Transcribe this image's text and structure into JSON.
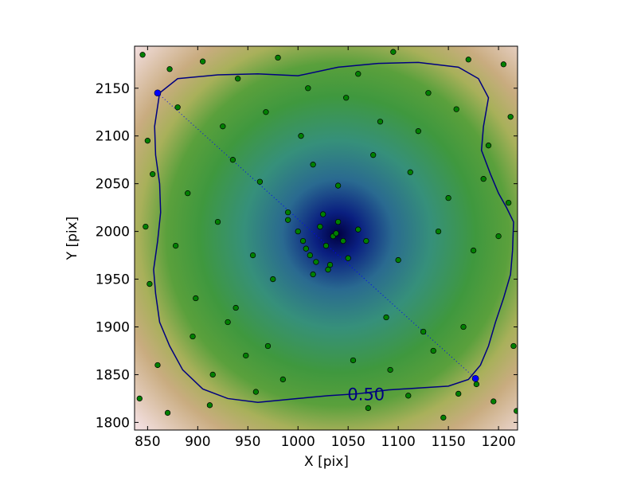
{
  "chart_data": {
    "type": "scatter",
    "x_label": "X [pix]",
    "y_label": "Y [pix]",
    "xlim": [
      837,
      1219
    ],
    "ylim": [
      1792,
      2194
    ],
    "xticks": [
      850,
      900,
      950,
      1000,
      1050,
      1100,
      1150,
      1200
    ],
    "yticks": [
      1800,
      1850,
      1900,
      1950,
      2000,
      2050,
      2100,
      2150
    ],
    "series": [
      {
        "color": "#008000",
        "x": [
          845,
          872,
          905,
          940,
          980,
          1010,
          1060,
          1095,
          1130,
          1170,
          1205,
          1212,
          850,
          880,
          925,
          968,
          1003,
          1048,
          1082,
          1120,
          1158,
          1190,
          855,
          890,
          935,
          962,
          1015,
          1040,
          1075,
          1112,
          1150,
          1185,
          1210,
          848,
          878,
          920,
          955,
          990,
          1030,
          1068,
          1100,
          1140,
          1175,
          1200,
          852,
          898,
          938,
          975,
          1005,
          1022,
          1035,
          1012,
          1028,
          1040,
          1018,
          1000,
          1045,
          1025,
          1008,
          1032,
          1050,
          990,
          1060,
          1015,
          1038,
          895,
          930,
          970,
          1088,
          1125,
          1165,
          860,
          915,
          948,
          985,
          1055,
          1092,
          1135,
          1178,
          1215,
          842,
          870,
          912,
          958,
          1070,
          1110,
          1145,
          1195,
          1218,
          1160
        ],
        "y": [
          2185,
          2170,
          2178,
          2160,
          2182,
          2150,
          2165,
          2188,
          2145,
          2180,
          2175,
          2120,
          2095,
          2130,
          2110,
          2125,
          2100,
          2140,
          2115,
          2105,
          2128,
          2090,
          2060,
          2040,
          2075,
          2052,
          2070,
          2048,
          2080,
          2062,
          2035,
          2055,
          2030,
          2005,
          1985,
          2010,
          1975,
          2020,
          1960,
          1990,
          1970,
          2000,
          1980,
          1995,
          1945,
          1930,
          1920,
          1950,
          1990,
          2005,
          1995,
          1975,
          1985,
          2010,
          1968,
          2000,
          1990,
          2018,
          1982,
          1965,
          1972,
          2012,
          2002,
          1955,
          1998,
          1890,
          1905,
          1880,
          1910,
          1895,
          1900,
          1860,
          1850,
          1870,
          1845,
          1865,
          1855,
          1875,
          1840,
          1880,
          1825,
          1810,
          1818,
          1832,
          1815,
          1828,
          1805,
          1822,
          1812,
          1830
        ]
      }
    ],
    "markers": {
      "color": "#0000ff",
      "x": [
        860,
        1177
      ],
      "y": [
        2145,
        1846
      ]
    },
    "contour": {
      "label": "0.50",
      "color": "#000080",
      "x": [
        862,
        880,
        920,
        960,
        1000,
        1040,
        1080,
        1120,
        1160,
        1180,
        1190,
        1185,
        1183,
        1192,
        1200,
        1208,
        1215,
        1214,
        1212,
        1205,
        1197,
        1190,
        1182,
        1170,
        1150,
        1120,
        1090,
        1060,
        1030,
        1000,
        960,
        930,
        905,
        885,
        872,
        862,
        858,
        856,
        860,
        863,
        862,
        858,
        857,
        862
      ],
      "y": [
        2145,
        2160,
        2164,
        2165,
        2163,
        2172,
        2176,
        2177,
        2172,
        2160,
        2140,
        2110,
        2085,
        2060,
        2040,
        2025,
        2010,
        1980,
        1955,
        1930,
        1905,
        1880,
        1860,
        1845,
        1838,
        1836,
        1834,
        1830,
        1828,
        1825,
        1821,
        1825,
        1835,
        1855,
        1880,
        1905,
        1935,
        1960,
        1990,
        2020,
        2050,
        2080,
        2110,
        2145
      ]
    }
  }
}
